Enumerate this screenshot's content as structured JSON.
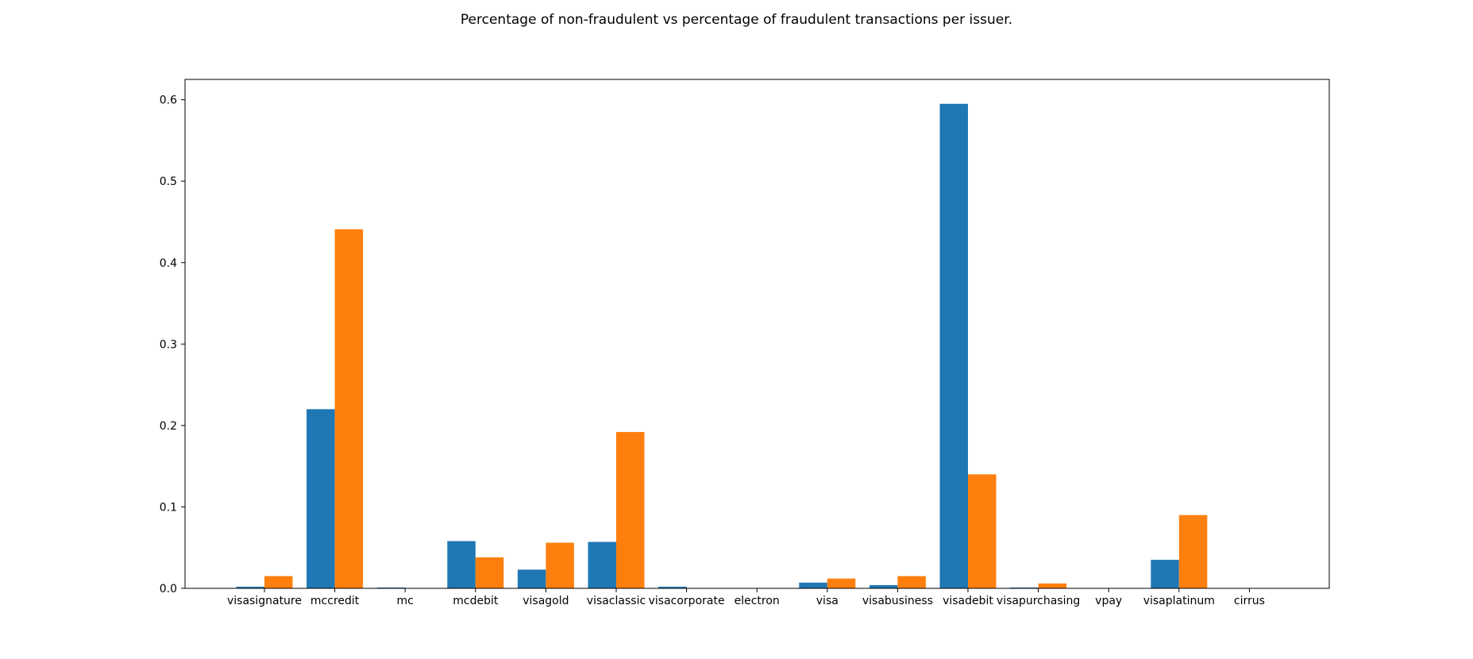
{
  "chart_data": {
    "type": "bar",
    "title": "Percentage of non-fraudulent vs percentage of fraudulent transactions per issuer.",
    "xlabel": "",
    "ylabel": "",
    "ylim": [
      0,
      0.625
    ],
    "yticks": [
      "0.0",
      "0.1",
      "0.2",
      "0.3",
      "0.4",
      "0.5",
      "0.6"
    ],
    "grid": false,
    "categories": [
      "visasignature",
      "mccredit",
      "mc",
      "mcdebit",
      "visagold",
      "visaclassic",
      "visacorporate",
      "electron",
      "visa",
      "visabusiness",
      "visadebit",
      "visapurchasing",
      "vpay",
      "visaplatinum",
      "cirrus"
    ],
    "series": [
      {
        "color": "#1f77b4",
        "values": [
          0.002,
          0.22,
          0.001,
          0.058,
          0.023,
          0.057,
          0.002,
          0.0002,
          0.007,
          0.004,
          0.595,
          0.001,
          0.0001,
          0.035,
          0.0001
        ]
      },
      {
        "color": "#ff7f0e",
        "values": [
          0.015,
          0.441,
          0.0,
          0.038,
          0.056,
          0.192,
          0.0,
          0.0,
          0.012,
          0.015,
          0.14,
          0.006,
          0.0,
          0.09,
          0.0
        ]
      }
    ]
  }
}
